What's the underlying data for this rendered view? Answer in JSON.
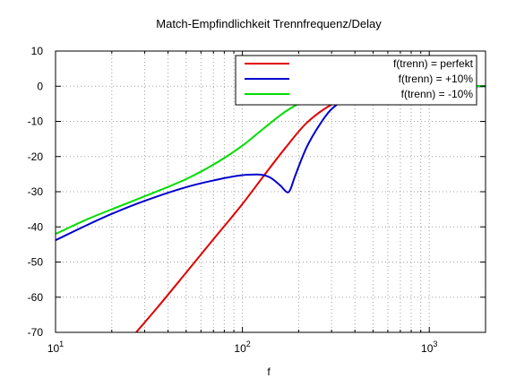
{
  "chart_data": {
    "type": "line",
    "title": "Match-Empfindlichkeit Trennfrequenz/Delay",
    "xlabel": "f",
    "ylabel": "",
    "xscale": "log",
    "xlim": [
      10,
      2000
    ],
    "ylim": [
      -70,
      10
    ],
    "grid": true,
    "legend_position": "top-right",
    "yticks": [
      10,
      0,
      -10,
      -20,
      -30,
      -40,
      -50,
      -60,
      -70
    ],
    "yticklabels": [
      "10",
      "0",
      "-10",
      "-20",
      "-30",
      "-40",
      "-50",
      "-60",
      "-70"
    ],
    "xticks": [
      {
        "value": 10,
        "base": "10",
        "exp": "1"
      },
      {
        "value": 100,
        "base": "10",
        "exp": "2"
      },
      {
        "value": 1000,
        "base": "10",
        "exp": "3"
      }
    ],
    "series": [
      {
        "name": "f(trenn) = perfekt",
        "color": "#e00000",
        "x": [
          27,
          35,
          50,
          70,
          100,
          130,
          170,
          220,
          300,
          400,
          600,
          1000,
          2000
        ],
        "y": [
          -70,
          -63,
          -53,
          -43.5,
          -33.5,
          -25.5,
          -17.5,
          -10.5,
          -5.2,
          -2.3,
          -0.6,
          -0.1,
          0
        ]
      },
      {
        "name": "f(trenn) = +10%",
        "color": "#0000cc",
        "x": [
          10,
          15,
          20,
          30,
          50,
          70,
          100,
          120,
          140,
          160,
          175,
          180,
          190,
          220,
          260,
          300,
          400,
          600,
          1000,
          2000
        ],
        "y": [
          -43.8,
          -39.3,
          -36.3,
          -32.6,
          -28.7,
          -26.8,
          -25.3,
          -25.1,
          -25.9,
          -28.3,
          -30.2,
          -29.5,
          -26,
          -17.5,
          -10.8,
          -6.5,
          -2.5,
          -0.6,
          -0.1,
          0
        ]
      },
      {
        "name": "f(trenn) = -10%",
        "color": "#00dd00",
        "x": [
          10,
          15,
          20,
          30,
          50,
          70,
          100,
          130,
          170,
          220,
          300,
          400,
          600,
          1000,
          2000
        ],
        "y": [
          -42,
          -37.7,
          -35,
          -31.3,
          -26.4,
          -22.3,
          -16.9,
          -12,
          -7.2,
          -3.9,
          -1.6,
          -0.5,
          -0.1,
          0,
          0
        ]
      }
    ]
  }
}
